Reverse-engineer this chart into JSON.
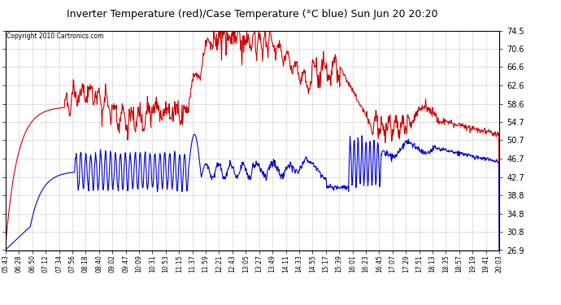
{
  "title": "Inverter Temperature (red)/Case Temperature (°C blue) Sun Jun 20 20:20",
  "copyright": "Copyright 2010 Cartronics.com",
  "background_color": "#ffffff",
  "plot_background": "#ffffff",
  "grid_color": "#aaaaaa",
  "red_color": "#cc0000",
  "blue_color": "#0000cc",
  "ylim": [
    26.9,
    74.5
  ],
  "yticks": [
    26.9,
    30.8,
    34.8,
    38.8,
    42.7,
    46.7,
    50.7,
    54.7,
    58.6,
    62.6,
    66.6,
    70.6,
    74.5
  ],
  "xtick_labels": [
    "05:43",
    "06:28",
    "06:50",
    "07:12",
    "07:34",
    "07:56",
    "08:18",
    "08:40",
    "09:02",
    "09:47",
    "10:09",
    "10:31",
    "10:53",
    "11:15",
    "11:37",
    "11:59",
    "12:21",
    "12:43",
    "13:05",
    "13:27",
    "13:49",
    "14:11",
    "14:33",
    "14:55",
    "15:17",
    "15:39",
    "16:01",
    "16:23",
    "16:45",
    "17:07",
    "17:29",
    "17:51",
    "18:13",
    "18:35",
    "18:57",
    "19:19",
    "19:41",
    "20:03"
  ],
  "n_points": 1000
}
